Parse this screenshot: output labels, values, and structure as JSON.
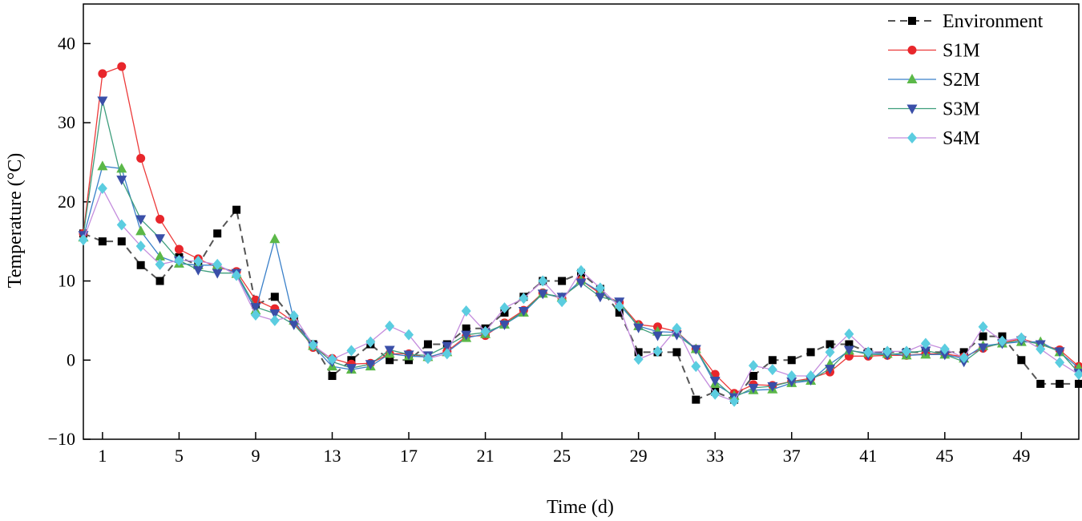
{
  "chart_data": {
    "type": "line",
    "xlabel": "Time (d)",
    "ylabel": "Temperature (°C)",
    "xlim": [
      0,
      52
    ],
    "ylim": [
      -10,
      45
    ],
    "x_ticks": [
      1,
      5,
      9,
      13,
      17,
      21,
      25,
      29,
      33,
      37,
      41,
      45,
      49
    ],
    "y_ticks": [
      -10,
      0,
      10,
      20,
      30,
      40
    ],
    "legend_position": "top-right",
    "x": [
      0,
      1,
      2,
      3,
      4,
      5,
      6,
      7,
      8,
      9,
      10,
      11,
      12,
      13,
      14,
      15,
      16,
      17,
      18,
      19,
      20,
      21,
      22,
      23,
      24,
      25,
      26,
      27,
      28,
      29,
      30,
      31,
      32,
      33,
      34,
      35,
      36,
      37,
      38,
      39,
      40,
      41,
      42,
      43,
      44,
      45,
      46,
      47,
      48,
      49,
      50,
      51,
      52
    ],
    "series": [
      {
        "name": "Environment",
        "color": "#000000",
        "line_color": "#555555",
        "dashed": true,
        "marker": "square",
        "values": [
          16,
          15,
          15,
          12,
          10,
          13,
          12,
          16,
          19,
          7,
          8,
          5,
          2,
          -2,
          0,
          2,
          0,
          0,
          2,
          2,
          4,
          4,
          6,
          8,
          10,
          10,
          11,
          9,
          6,
          1,
          1,
          1,
          -5,
          -4,
          -5,
          -2,
          0,
          0,
          1,
          2,
          2,
          1,
          1,
          1,
          1,
          1,
          1,
          3,
          3,
          0,
          -3,
          -3,
          -3
        ]
      },
      {
        "name": "S1M",
        "color": "#e8262b",
        "line_color": "#ec3a3a",
        "dashed": false,
        "marker": "circle",
        "values": [
          16,
          36.2,
          37.1,
          25.5,
          17.8,
          14,
          12.8,
          11.7,
          11.2,
          7.6,
          6.5,
          4.8,
          1.6,
          0.2,
          -0.5,
          -0.4,
          0.8,
          0.8,
          0.3,
          1.1,
          3,
          3.1,
          4.7,
          6.3,
          8.5,
          7.8,
          10.1,
          8.4,
          7.3,
          4.5,
          4.2,
          3.6,
          1.4,
          -1.8,
          -4.2,
          -3.1,
          -3.2,
          -2.7,
          -2.3,
          -1.5,
          0.5,
          0.5,
          0.6,
          0.6,
          0.8,
          0.8,
          0.4,
          1.5,
          2.2,
          2.7,
          2,
          1.3,
          -0.8
        ]
      },
      {
        "name": "S2M",
        "color": "#5bb848",
        "line_color": "#3a80c9",
        "dashed": false,
        "marker": "triangle-up",
        "values": [
          15.5,
          24.5,
          24.2,
          16.3,
          13.1,
          12.2,
          12,
          12,
          10.9,
          6.3,
          15.3,
          5,
          1.8,
          -0.8,
          -1.2,
          -0.8,
          0.8,
          0.5,
          0.4,
          1,
          2.8,
          3.3,
          4.5,
          6,
          8.4,
          7.9,
          10.1,
          8.6,
          7,
          4.3,
          3.6,
          3.5,
          1.4,
          -3,
          -4.5,
          -3.8,
          -3.7,
          -2.9,
          -2.6,
          -0.5,
          1.2,
          0.9,
          0.8,
          0.6,
          0.7,
          0.7,
          0.2,
          1.8,
          2.1,
          2.3,
          2.3,
          1,
          -1
        ]
      },
      {
        "name": "S3M",
        "color": "#3a4fa8",
        "line_color": "#3e9e7c",
        "dashed": false,
        "marker": "triangle-down",
        "values": [
          15.8,
          32.8,
          22.8,
          17.8,
          15.4,
          12.6,
          11.4,
          11,
          11,
          6.7,
          5.9,
          4.5,
          1.8,
          -0.2,
          -1,
          -0.5,
          1.3,
          0.7,
          0.6,
          1.8,
          3.2,
          3.5,
          4.5,
          6.2,
          8.4,
          8,
          9.8,
          8,
          7.4,
          4.1,
          3.1,
          3.2,
          1.4,
          -2.6,
          -4.7,
          -3.5,
          -3.3,
          -2.7,
          -2.5,
          -1.1,
          1.3,
          0.7,
          0.7,
          0.9,
          1.2,
          0.7,
          -0.2,
          1.6,
          2.1,
          2.5,
          2,
          1.1,
          -1.6
        ]
      },
      {
        "name": "S4M",
        "color": "#5bcde0",
        "line_color": "#c48ddd",
        "dashed": false,
        "marker": "diamond",
        "values": [
          15.2,
          21.7,
          17.1,
          14.4,
          12.1,
          12.6,
          12.5,
          12.1,
          10.7,
          5.7,
          5,
          5.6,
          1.9,
          0.1,
          1.2,
          2.3,
          4.3,
          3.2,
          0.2,
          0.8,
          6.2,
          3.6,
          6.6,
          7.8,
          10,
          7.4,
          11.3,
          9.1,
          6.8,
          0.1,
          1.1,
          4,
          -0.8,
          -4.3,
          -5.2,
          -0.7,
          -1.2,
          -2,
          -2,
          1,
          3.3,
          1,
          1.1,
          1.1,
          2.1,
          1.4,
          0.3,
          4.2,
          2.4,
          2.8,
          1.4,
          -0.3,
          -1.8
        ]
      }
    ]
  }
}
